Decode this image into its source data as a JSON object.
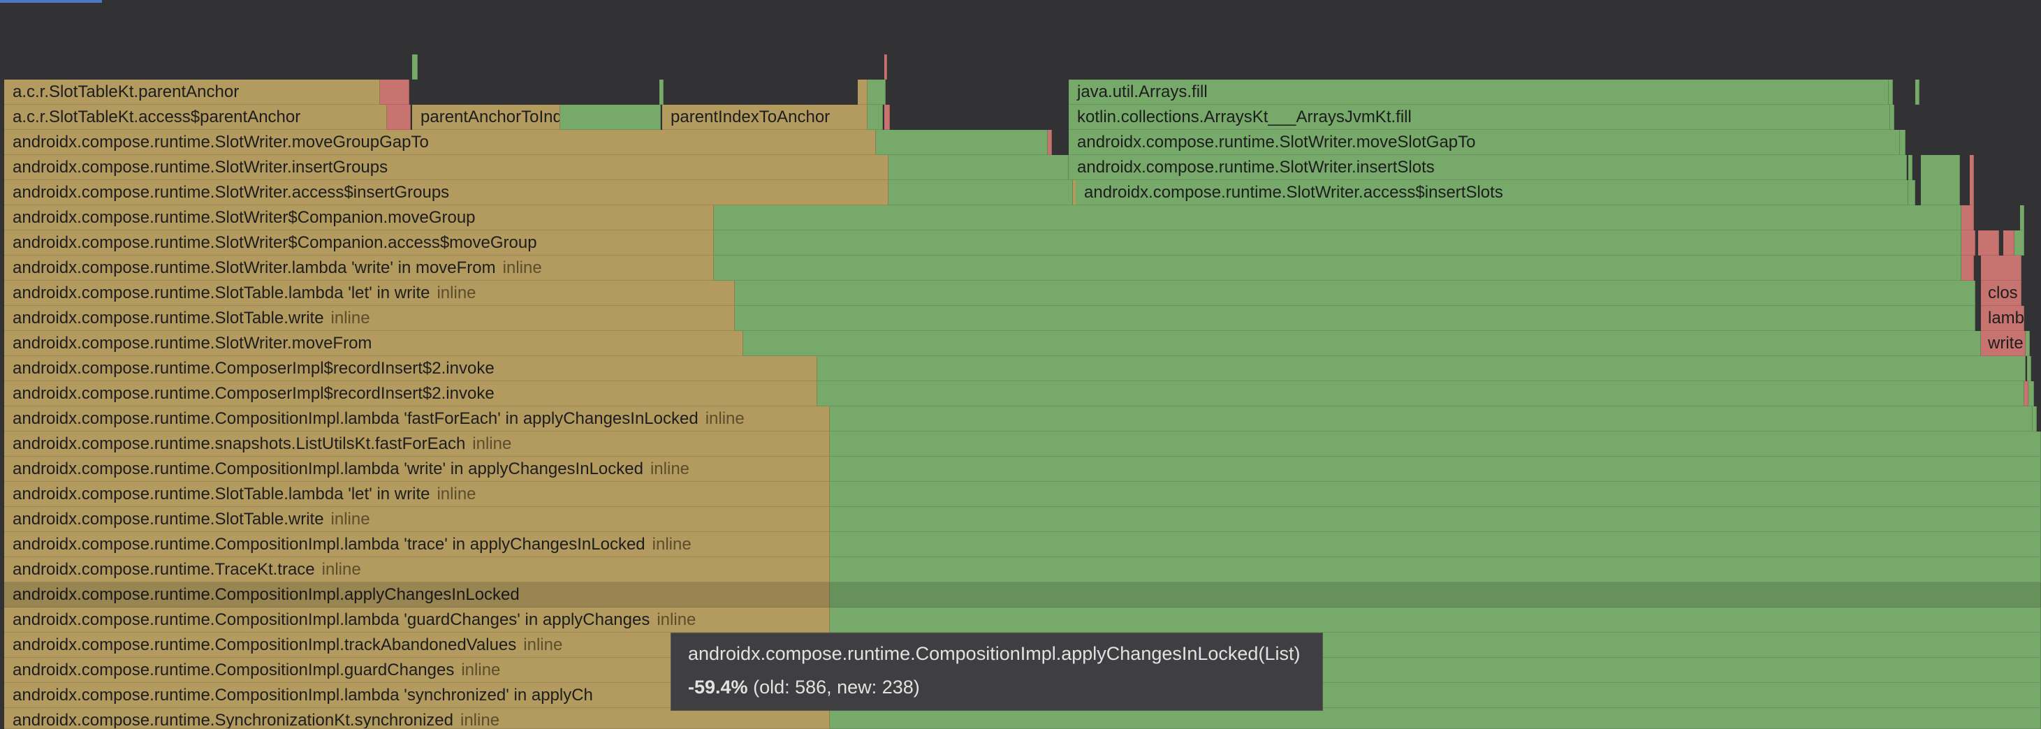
{
  "colors": {
    "background": "#323234",
    "decreased_frame": "#b39b5f",
    "unchanged_frame": "#77a96a",
    "increased_frame": "#c77470",
    "tooltip_bg": "#3f3f42"
  },
  "frames": {
    "f01": "a.c.r.SlotTableKt.parentAnchor",
    "f02": "a.c.r.SlotTableKt.access$parentAnchor",
    "f03": "parentAnchorToIndex",
    "f04": "parentIndexToAnchor",
    "f05": "androidx.compose.runtime.SlotWriter.moveGroupGapTo",
    "f06": "androidx.compose.runtime.SlotWriter.insertGroups",
    "f07": "androidx.compose.runtime.SlotWriter.access$insertGroups",
    "f08": "androidx.compose.runtime.SlotWriter$Companion.moveGroup",
    "f09": "androidx.compose.runtime.SlotWriter$Companion.access$moveGroup",
    "f10": "androidx.compose.runtime.SlotWriter.lambda 'write' in moveFrom",
    "f11": "androidx.compose.runtime.SlotTable.lambda 'let' in write",
    "f12": "androidx.compose.runtime.SlotTable.write",
    "f13": "androidx.compose.runtime.SlotWriter.moveFrom",
    "f14": "androidx.compose.runtime.ComposerImpl$recordInsert$2.invoke",
    "f15": "androidx.compose.runtime.ComposerImpl$recordInsert$2.invoke",
    "f16": "androidx.compose.runtime.CompositionImpl.lambda 'fastForEach' in applyChangesInLocked",
    "f17": "androidx.compose.runtime.snapshots.ListUtilsKt.fastForEach",
    "f18": "androidx.compose.runtime.CompositionImpl.lambda 'write' in applyChangesInLocked",
    "f19": "androidx.compose.runtime.SlotTable.lambda 'let' in write",
    "f20": "androidx.compose.runtime.SlotTable.write",
    "f21": "androidx.compose.runtime.CompositionImpl.lambda 'trace' in applyChangesInLocked",
    "f22": "androidx.compose.runtime.TraceKt.trace",
    "f23": "androidx.compose.runtime.CompositionImpl.applyChangesInLocked",
    "f24": "androidx.compose.runtime.CompositionImpl.lambda 'guardChanges' in applyChanges",
    "f25": "androidx.compose.runtime.CompositionImpl.trackAbandonedValues",
    "f26": "androidx.compose.runtime.CompositionImpl.guardChanges",
    "f27": "androidx.compose.runtime.CompositionImpl.lambda 'synchronized' in applyCh",
    "f28": "androidx.compose.runtime.SynchronizationKt.synchronized",
    "g01": "java.util.Arrays.fill",
    "g02": "kotlin.collections.ArraysKt___ArraysJvmKt.fill",
    "g03": "androidx.compose.runtime.SlotWriter.moveSlotGapTo",
    "g04": "androidx.compose.runtime.SlotWriter.insertSlots",
    "g05": "androidx.compose.runtime.SlotWriter.access$insertSlots",
    "r01": "clos",
    "r02": "lamb",
    "r03": "write"
  },
  "inline_tag": "inline",
  "tooltip": {
    "method": "androidx.compose.runtime.CompositionImpl.applyChangesInLocked(List)",
    "percent": "-59.4%",
    "details": "(old: 586, new: 238)"
  }
}
